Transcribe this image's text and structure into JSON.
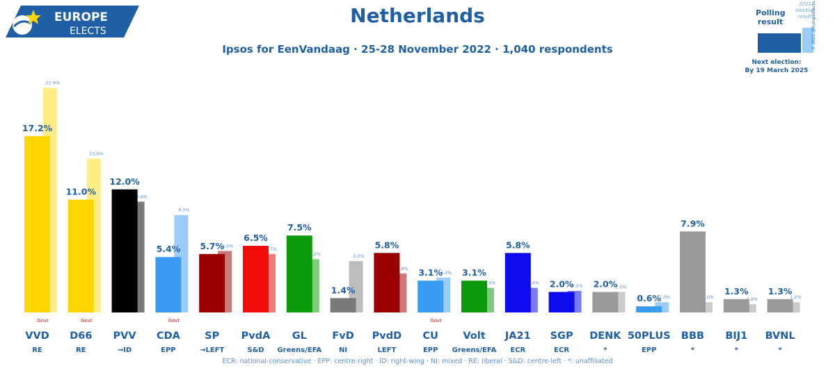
{
  "header": {
    "logo_line1": "EUROPE",
    "logo_line2": "ELECTS",
    "title": "Netherlands",
    "subtitle": "Ipsos for EenVandaag · 25-28 November 2022 · 1,040 respondents"
  },
  "legend": {
    "polling_line1": "Polling",
    "polling_line2": "result",
    "prev_line1": "2021",
    "prev_line2": "election",
    "prev_line3": "result",
    "next_line1": "Next election:",
    "next_line2": "By 19 March 2025",
    "copyright": "© 2022 @EuropeElects"
  },
  "footnote": "ECR: national-conservative · EPP: centre-right · ID: right-wing · NI: mixed · RE: liberal · S&D: centre-left · *: unaffiliated",
  "colors": {
    "brand": "#1f5fa6",
    "govt_label": "#d21f1f"
  },
  "chart_data": {
    "type": "bar",
    "ylim": [
      0,
      22
    ],
    "series_names": [
      "Polling result",
      "2021 election result"
    ],
    "categories": [
      "VVD",
      "D66",
      "PVV",
      "CDA",
      "SP",
      "PvdA",
      "GL",
      "FvD",
      "PvdD",
      "CU",
      "Volt",
      "JA21",
      "SGP",
      "DENK",
      "50PLUS",
      "BBB",
      "BIJ1",
      "BVNL"
    ],
    "groups": [
      "RE",
      "RE",
      "→ID",
      "EPP",
      "→LEFT",
      "S&D",
      "Greens/EFA",
      "NI",
      "LEFT",
      "EPP",
      "Greens/EFA",
      "ECR",
      "ECR",
      "*",
      "EPP",
      "*",
      "*",
      "*"
    ],
    "govt": [
      true,
      true,
      false,
      true,
      false,
      false,
      false,
      false,
      false,
      true,
      false,
      false,
      false,
      false,
      false,
      false,
      false,
      false
    ],
    "govt_label": "Govt",
    "values": [
      17.2,
      11.0,
      12.0,
      5.4,
      5.7,
      6.5,
      7.5,
      1.4,
      5.8,
      3.1,
      3.1,
      5.8,
      2.0,
      2.0,
      0.6,
      7.9,
      1.3,
      1.3
    ],
    "value_labels": [
      "17.2%",
      "11.0%",
      "12.0%",
      "5.4%",
      "5.7%",
      "6.5%",
      "7.5%",
      "1.4%",
      "5.8%",
      "3.1%",
      "3.1%",
      "5.8%",
      "2.0%",
      "2.0%",
      "0.6%",
      "7.9%",
      "1.3%",
      "1.3%"
    ],
    "previous": [
      21.9,
      15.0,
      10.8,
      9.5,
      6.0,
      5.7,
      5.2,
      5.0,
      3.8,
      3.4,
      2.4,
      2.4,
      2.1,
      2.0,
      1.0,
      1.0,
      0.8,
      1.0
    ],
    "previous_labels": [
      "21.9%",
      "15.0%",
      "10.8%",
      "9.5%",
      "6.0%",
      "5.7%",
      "5.2%",
      "5.0%",
      "3.8%",
      "3.4%",
      "2.4%",
      "2.4%",
      "2.1%",
      "2.0%",
      "1.0%",
      "1.0%",
      "0.8%",
      "1.0%"
    ],
    "colors": [
      "#FFD700",
      "#FFD700",
      "#000000",
      "#3A9BF4",
      "#9B0000",
      "#F20D0D",
      "#0B9A0B",
      "#7A7A7A",
      "#9B0000",
      "#3A9BF4",
      "#0B9A0B",
      "#0B0BEE",
      "#0B0BEE",
      "#9A9A9A",
      "#3A9BF4",
      "#9A9A9A",
      "#9A9A9A",
      "#9A9A9A"
    ],
    "prev_colors": [
      "#FFEE86",
      "#FFEE86",
      "#7A7A7A",
      "#9CCCFA",
      "#C97A7A",
      "#F77A7A",
      "#7ACC7A",
      "#BDBDBD",
      "#C97A7A",
      "#9CCCFA",
      "#7ACC7A",
      "#7A7AF4",
      "#7A7AF4",
      "#CBCBCB",
      "#9CCCFA",
      "#CBCBCB",
      "#CBCBCB",
      "#CBCBCB"
    ]
  }
}
